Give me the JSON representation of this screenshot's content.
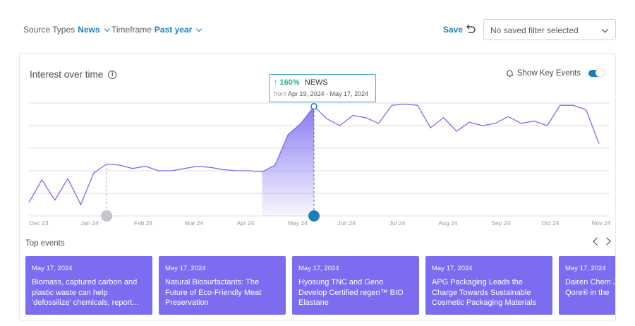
{
  "filters": {
    "source_label": "Source Types",
    "source_value": "News",
    "timeframe_label": "Timeframe",
    "timeframe_value": "Past year"
  },
  "toolbar": {
    "save_label": "Save",
    "saved_filter": "No saved filter selected"
  },
  "card": {
    "title": "Interest over time",
    "key_events_label": "Show Key Events"
  },
  "tooltip": {
    "change": "↑ 160%",
    "source": "NEWS",
    "from_label": "from",
    "range": "Apr 19, 2024 - May 17, 2024"
  },
  "top_events_label": "Top events",
  "events": [
    {
      "date": "May 17, 2024",
      "title": "Biomass, captured carbon and plastic waste can help 'defossilize' chemicals, report..."
    },
    {
      "date": "May 17, 2024",
      "title": "Natural Biosurfactants: The Future of Eco-Friendly Meat Preservation"
    },
    {
      "date": "May 17, 2024",
      "title": "Hyosung TNC and Geno Develop Certified regen™ BIO Elastane"
    },
    {
      "date": "May 17, 2024",
      "title": "APG Packaging Leads the Charge Towards Sustainable Cosmetic Packaging Materials"
    },
    {
      "date": "May 17, 2024",
      "title": "Dairen Chem Joins The LYC Qore® in the"
    }
  ],
  "colors": {
    "accent": "#1e7fb8",
    "line": "#7b6cf0",
    "event_card": "#7b6cf0"
  },
  "chart_data": {
    "type": "line",
    "x_ticks": [
      "Dec 23",
      "Jan 24",
      "Feb 24",
      "Mar 24",
      "Apr 24",
      "May 24",
      "Jun 24",
      "Jul 24",
      "Aug 24",
      "Sep 24",
      "Oct 24",
      "Nov 24"
    ],
    "ylim": [
      0,
      100
    ],
    "highlight_range": [
      "Apr 19, 2024",
      "May 17, 2024"
    ],
    "grid": true,
    "values": [
      12,
      32,
      14,
      33,
      10,
      38,
      46,
      45,
      42,
      44,
      40,
      40,
      42,
      44,
      43,
      41,
      40,
      40,
      39,
      45,
      72,
      82,
      97,
      86,
      80,
      89,
      87,
      82,
      98,
      99,
      98,
      78,
      87,
      75,
      83,
      80,
      82,
      88,
      82,
      84,
      80,
      98,
      98,
      94,
      64
    ]
  }
}
